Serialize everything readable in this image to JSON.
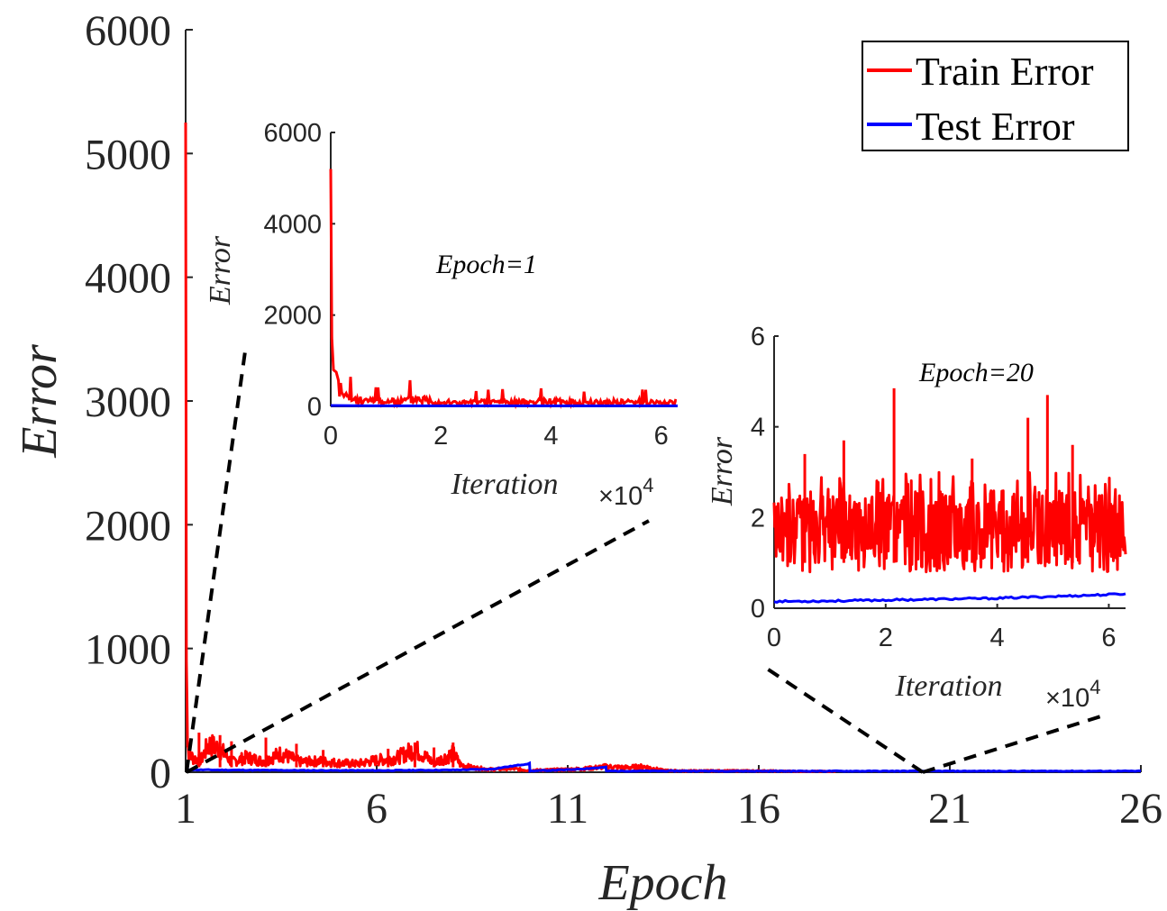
{
  "chart_data": [
    {
      "type": "line",
      "id": "main",
      "title": "",
      "xlabel": "Epoch",
      "ylabel": "Error",
      "xlim": [
        1,
        26
      ],
      "ylim": [
        0,
        6000
      ],
      "xticks": [
        1,
        6,
        11,
        16,
        21,
        26
      ],
      "xtick_labels": [
        "1",
        "6",
        "11",
        "16",
        "21",
        "26"
      ],
      "yticks": [
        0,
        1000,
        2000,
        3000,
        4000,
        5000,
        6000
      ],
      "ytick_labels": [
        "0",
        "1000",
        "2000",
        "3000",
        "4000",
        "5000",
        "6000"
      ],
      "legend_position": "top-right",
      "series": [
        {
          "name": "Train Error",
          "color": "#ff0000",
          "x": [
            1,
            1.02,
            1.05,
            1.1,
            1.2,
            1.4,
            1.6,
            1.9,
            2.2,
            2.6,
            3,
            3.5,
            4,
            4.5,
            5,
            5.5,
            6,
            6.5,
            7,
            7.5,
            8,
            8.2,
            8.5,
            9,
            9.5,
            10,
            10.5,
            11,
            11.5,
            12,
            12.5,
            13,
            13.5,
            14,
            15,
            16,
            17,
            18
          ],
          "y": [
            5250,
            900,
            300,
            200,
            150,
            130,
            300,
            250,
            110,
            160,
            120,
            200,
            110,
            120,
            100,
            90,
            130,
            150,
            250,
            100,
            200,
            80,
            50,
            30,
            40,
            20,
            25,
            30,
            40,
            60,
            50,
            60,
            20,
            15,
            15,
            15,
            10,
            10
          ],
          "spikes": [
            {
              "x": 1.35,
              "y": 320
            },
            {
              "x": 1.9,
              "y": 300
            },
            {
              "x": 2.2,
              "y": 250
            },
            {
              "x": 3.1,
              "y": 280
            },
            {
              "x": 3.9,
              "y": 230
            },
            {
              "x": 4.6,
              "y": 180
            },
            {
              "x": 6.3,
              "y": 190
            },
            {
              "x": 7.0,
              "y": 240
            },
            {
              "x": 7.5,
              "y": 200
            },
            {
              "x": 8.0,
              "y": 240
            }
          ]
        },
        {
          "name": "Test Error",
          "color": "#0000ff",
          "x": [
            1,
            2,
            4,
            6,
            8,
            9,
            10,
            10.01,
            11,
            12,
            12.01,
            14,
            16,
            18,
            20,
            22,
            24,
            26
          ],
          "y": [
            20,
            18,
            15,
            14,
            18,
            25,
            70,
            10,
            20,
            40,
            10,
            10,
            9,
            9,
            9,
            9,
            9,
            9
          ]
        }
      ],
      "annotations": [
        "Epoch=1",
        "Epoch=20"
      ]
    },
    {
      "type": "line",
      "id": "inset-epoch-1",
      "title": "Epoch=1",
      "xlabel": "Iteration",
      "ylabel": "Error",
      "x_multiplier": "×10^4",
      "xlim": [
        0,
        6.3
      ],
      "ylim": [
        0,
        6000
      ],
      "xticks": [
        0,
        2,
        4,
        6
      ],
      "xtick_labels": [
        "0",
        "2",
        "4",
        "6"
      ],
      "yticks": [
        0,
        2000,
        4000,
        6000
      ],
      "ytick_labels": [
        "0",
        "2000",
        "4000",
        "6000"
      ],
      "series": [
        {
          "name": "Train Error",
          "color": "#ff0000",
          "x": [
            0,
            0.02,
            0.05,
            0.1,
            0.2,
            0.3,
            0.5,
            0.8,
            1.2,
            1.6,
            2,
            2.5,
            3,
            3.5,
            4,
            4.5,
            5,
            5.5,
            6,
            6.3
          ],
          "y": [
            5200,
            1500,
            800,
            750,
            300,
            200,
            150,
            120,
            110,
            200,
            100,
            90,
            110,
            100,
            120,
            90,
            100,
            110,
            95,
            100
          ]
        },
        {
          "name": "Test Error",
          "color": "#0000ff",
          "x": [
            0,
            0.5,
            1,
            2,
            3,
            4,
            5,
            6,
            6.3
          ],
          "y": [
            20,
            15,
            12,
            12,
            12,
            12,
            12,
            12,
            12
          ]
        }
      ]
    },
    {
      "type": "line",
      "id": "inset-epoch-20",
      "title": "Epoch=20",
      "xlabel": "Iteration",
      "ylabel": "Error",
      "x_multiplier": "×10^4",
      "xlim": [
        0,
        6.3
      ],
      "ylim": [
        0,
        6
      ],
      "xticks": [
        0,
        2,
        4,
        6
      ],
      "xtick_labels": [
        "0",
        "2",
        "4",
        "6"
      ],
      "yticks": [
        0,
        2,
        4,
        6
      ],
      "ytick_labels": [
        "0",
        "2",
        "4",
        "6"
      ],
      "series": [
        {
          "name": "Train Error",
          "color": "#ff0000",
          "range": [
            0.8,
            2.6
          ],
          "spikes": [
            {
              "x": 0.55,
              "y": 3.4
            },
            {
              "x": 1.25,
              "y": 3.7
            },
            {
              "x": 2.15,
              "y": 4.85
            },
            {
              "x": 3.55,
              "y": 3.3
            },
            {
              "x": 4.55,
              "y": 4.2
            },
            {
              "x": 4.9,
              "y": 4.7
            },
            {
              "x": 5.35,
              "y": 3.6
            }
          ]
        },
        {
          "name": "Test Error",
          "color": "#0000ff",
          "x": [
            0,
            1,
            2,
            3,
            4,
            5,
            6,
            6.3
          ],
          "y": [
            0.15,
            0.16,
            0.18,
            0.2,
            0.22,
            0.26,
            0.3,
            0.32
          ]
        }
      ]
    }
  ],
  "legend": {
    "items": [
      {
        "label": "Train Error",
        "color": "#ff0000"
      },
      {
        "label": "Test Error",
        "color": "#0000ff"
      }
    ]
  },
  "insets": {
    "epoch1": {
      "annotation": "Epoch=1",
      "xlabel": "Iteration",
      "ylabel": "Error",
      "multiplier_base": "×10",
      "multiplier_exp": "4"
    },
    "epoch20": {
      "annotation": "Epoch=20",
      "xlabel": "Iteration",
      "ylabel": "Error",
      "multiplier_base": "×10",
      "multiplier_exp": "4"
    }
  },
  "main": {
    "xlabel": "Epoch",
    "ylabel": "Error"
  }
}
